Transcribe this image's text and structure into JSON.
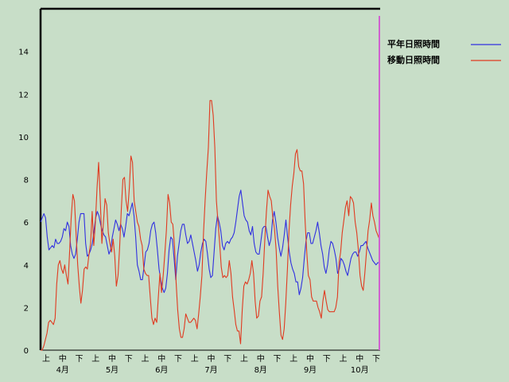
{
  "chart_data": {
    "type": "line",
    "ylim": [
      0,
      16
    ],
    "yticks": [
      0,
      2,
      4,
      6,
      8,
      10,
      12,
      14
    ],
    "grid": false,
    "legend_position": "top-right",
    "x_day_labels": [
      "上",
      "中",
      "下"
    ],
    "months": [
      "4月",
      "5月",
      "6月",
      "7月",
      "8月",
      "9月",
      "10月"
    ],
    "series": [
      {
        "name": "平年日照時間",
        "color": "#3030e0",
        "values": [
          6.0,
          6.2,
          6.4,
          6.2,
          5.3,
          4.7,
          4.8,
          4.9,
          4.8,
          5.2,
          5.0,
          5.0,
          5.1,
          5.3,
          5.7,
          5.6,
          6.0,
          5.8,
          4.9,
          4.5,
          4.3,
          4.5,
          5.2,
          6.0,
          6.4,
          6.4,
          6.4,
          5.0,
          4.4,
          4.5,
          4.7,
          5.0,
          5.6,
          6.2,
          6.5,
          6.3,
          5.9,
          5.6,
          5.4,
          5.3,
          4.9,
          4.5,
          4.7,
          5.3,
          5.7,
          6.1,
          5.9,
          5.6,
          5.9,
          5.7,
          5.3,
          5.8,
          6.4,
          6.3,
          6.6,
          6.9,
          6.3,
          5.3,
          4.0,
          3.7,
          3.3,
          3.3,
          3.9,
          4.6,
          4.7,
          5.0,
          5.6,
          5.9,
          6.0,
          5.5,
          4.7,
          3.8,
          3.3,
          2.9,
          2.7,
          2.9,
          3.6,
          4.7,
          5.3,
          5.2,
          4.3,
          3.3,
          4.4,
          5.0,
          5.6,
          5.9,
          5.9,
          5.4,
          5.0,
          5.1,
          5.4,
          5.0,
          4.6,
          4.2,
          3.7,
          4.0,
          4.6,
          5.0,
          5.2,
          5.1,
          4.5,
          3.8,
          3.4,
          3.5,
          4.6,
          5.7,
          6.3,
          6.0,
          5.6,
          4.9,
          4.7,
          5.0,
          5.1,
          5.0,
          5.2,
          5.3,
          5.5,
          6.0,
          6.6,
          7.2,
          7.5,
          6.9,
          6.3,
          6.1,
          6.0,
          5.6,
          5.4,
          5.8,
          5.0,
          4.6,
          4.5,
          4.5,
          5.1,
          5.7,
          5.8,
          5.8,
          5.3,
          4.9,
          5.2,
          6.1,
          6.5,
          6.0,
          5.3,
          4.8,
          4.4,
          4.8,
          5.4,
          6.1,
          5.3,
          4.6,
          4.1,
          3.8,
          3.6,
          3.2,
          3.2,
          2.6,
          2.9,
          3.4,
          4.3,
          5.1,
          5.5,
          5.5,
          5.0,
          5.0,
          5.3,
          5.6,
          6.0,
          5.5,
          4.9,
          4.5,
          3.9,
          3.6,
          4.0,
          4.7,
          5.1,
          5.0,
          4.7,
          4.3,
          3.6,
          3.8,
          4.3,
          4.2,
          4.0,
          3.7,
          3.5,
          3.9,
          4.3,
          4.5,
          4.6,
          4.6,
          4.4,
          4.6,
          4.9,
          4.9,
          5.0,
          5.1,
          4.8,
          4.6,
          4.4,
          4.2,
          4.1,
          4.0,
          4.1,
          4.1
        ]
      },
      {
        "name": "移動日照時間",
        "color": "#e03a20",
        "values": [
          0.0,
          0.0,
          0.2,
          0.5,
          0.8,
          1.3,
          1.4,
          1.3,
          1.2,
          1.5,
          3.1,
          4.0,
          4.2,
          3.8,
          3.6,
          4.0,
          3.5,
          3.1,
          4.6,
          6.2,
          7.3,
          7.0,
          5.5,
          4.0,
          3.0,
          2.2,
          2.8,
          3.8,
          3.9,
          3.8,
          4.5,
          5.0,
          6.5,
          4.9,
          6.0,
          7.6,
          8.8,
          7.0,
          5.0,
          6.0,
          7.1,
          6.8,
          5.5,
          5.0,
          4.6,
          5.2,
          4.4,
          3.0,
          3.5,
          4.8,
          6.5,
          8.0,
          8.1,
          7.0,
          6.5,
          7.6,
          9.1,
          8.8,
          7.0,
          6.5,
          6.0,
          5.8,
          5.2,
          4.9,
          3.8,
          3.6,
          3.5,
          3.5,
          2.5,
          1.5,
          1.2,
          1.5,
          1.3,
          2.5,
          3.6,
          2.7,
          3.5,
          4.5,
          5.6,
          7.3,
          6.9,
          6.0,
          5.9,
          4.9,
          3.2,
          1.9,
          1.0,
          0.6,
          0.6,
          1.0,
          1.7,
          1.5,
          1.3,
          1.3,
          1.4,
          1.5,
          1.4,
          1.0,
          1.7,
          2.5,
          3.5,
          5.5,
          7.0,
          8.3,
          9.5,
          11.7,
          11.7,
          11.0,
          9.5,
          7.0,
          6.0,
          5.0,
          3.9,
          3.4,
          3.5,
          3.4,
          3.5,
          4.2,
          3.6,
          2.5,
          1.9,
          1.2,
          0.9,
          0.9,
          0.3,
          1.9,
          3.0,
          3.2,
          3.1,
          3.3,
          3.6,
          4.2,
          3.6,
          2.3,
          1.5,
          1.6,
          2.3,
          2.5,
          3.6,
          5.2,
          6.5,
          7.5,
          7.2,
          7.0,
          6.2,
          5.7,
          4.7,
          3.0,
          1.8,
          0.7,
          0.5,
          1.0,
          2.2,
          3.8,
          5.6,
          6.8,
          7.7,
          8.3,
          9.2,
          9.4,
          8.6,
          8.4,
          8.4,
          7.8,
          6.0,
          4.6,
          3.5,
          3.3,
          2.5,
          2.3,
          2.3,
          2.3,
          2.0,
          1.8,
          1.5,
          2.3,
          2.8,
          2.3,
          1.9,
          1.8,
          1.8,
          1.8,
          1.8,
          2.0,
          2.5,
          4.1,
          4.6,
          5.5,
          6.1,
          6.7,
          7.0,
          6.3,
          7.2,
          7.1,
          6.9,
          6.0,
          5.5,
          4.7,
          3.5,
          3.0,
          2.8,
          3.6,
          4.6,
          5.6,
          6.1,
          6.9,
          6.3,
          6.0,
          5.6,
          5.4,
          5.2
        ]
      }
    ]
  }
}
